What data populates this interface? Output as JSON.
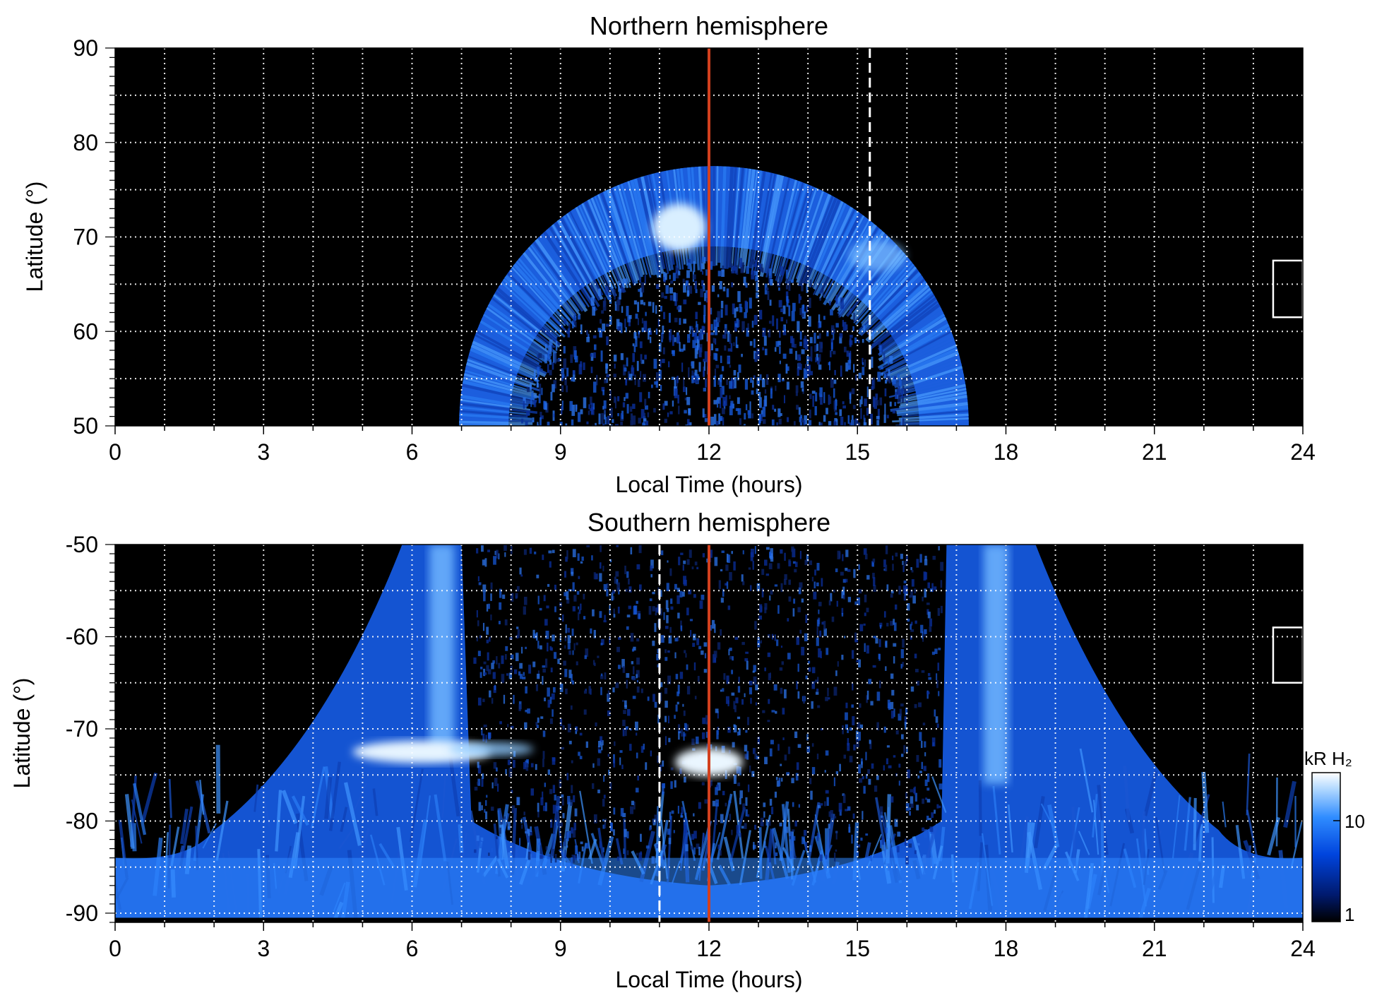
{
  "chart_data": [
    {
      "type": "heatmap",
      "title": "Northern hemisphere",
      "xlabel": "Local Time (hours)",
      "ylabel": "Latitude (°)",
      "xlim": [
        0,
        24
      ],
      "ylim": [
        50,
        90
      ],
      "xticks": [
        0,
        3,
        6,
        9,
        12,
        15,
        18,
        21,
        24
      ],
      "yticks": [
        50,
        60,
        70,
        80,
        90
      ],
      "grid": true,
      "emission_regions": [
        {
          "name": "auroral oval",
          "shape": "arc",
          "lt_range": [
            7.0,
            17.3
          ],
          "outer_lat_noon": 77.5,
          "inner_lat_noon": 69,
          "peak_lt": 11.4,
          "peak_lat": 71
        },
        {
          "name": "polar cap",
          "shape": "patchy",
          "lt_range": [
            8.0,
            16.0
          ],
          "lat_range": [
            50,
            69
          ]
        }
      ],
      "markers": [
        {
          "type": "solid vertical line",
          "x": 12,
          "color": "#d2401e"
        },
        {
          "type": "dashed vertical line",
          "x": 15.25,
          "color": "#ffffff"
        },
        {
          "type": "box",
          "x_range": [
            23.4,
            24
          ],
          "y_range": [
            61.5,
            67.5
          ],
          "color": "#ffffff"
        }
      ]
    },
    {
      "type": "heatmap",
      "title": "Southern hemisphere",
      "xlabel": "Local Time (hours)",
      "ylabel": "Latitude (°)",
      "xlim": [
        0,
        24
      ],
      "ylim": [
        -91,
        -50
      ],
      "xticks": [
        0,
        3,
        6,
        9,
        12,
        15,
        18,
        21,
        24
      ],
      "yticks": [
        -90,
        -80,
        -70,
        -60,
        -50
      ],
      "grid": true,
      "emission_regions": [
        {
          "name": "dawn oval",
          "lt_range": [
            0,
            7.0
          ],
          "lat_range": [
            -91,
            -50
          ]
        },
        {
          "name": "dusk oval",
          "lt_range": [
            16.5,
            24
          ],
          "lat_range": [
            -91,
            -50
          ]
        },
        {
          "name": "dawn arc",
          "lt": 6.6,
          "lat_range": [
            -72,
            -50
          ]
        },
        {
          "name": "dusk arc",
          "lt": 17.8,
          "lat_range": [
            -75,
            -50
          ]
        },
        {
          "name": "bright patch",
          "lt_range": [
            5.0,
            8.5
          ],
          "lat": -72.5
        },
        {
          "name": "bright spot",
          "lt_range": [
            11.0,
            13.0
          ],
          "lat": -73.5
        },
        {
          "name": "polar band",
          "lt_range": [
            0,
            24
          ],
          "lat_range": [
            -90.5,
            -84
          ]
        }
      ],
      "markers": [
        {
          "type": "solid vertical line",
          "x": 12,
          "color": "#d2401e"
        },
        {
          "type": "dashed vertical line",
          "x": 11,
          "color": "#ffffff"
        },
        {
          "type": "box",
          "x_range": [
            23.4,
            24
          ],
          "y_range": [
            -65,
            -59
          ],
          "color": "#ffffff"
        }
      ]
    }
  ],
  "colorbar": {
    "label": "kR H₂",
    "scale": "log",
    "range": [
      1,
      25
    ],
    "ticks": [
      1,
      10
    ],
    "colors": [
      "#000000",
      "#001a6e",
      "#0044dd",
      "#2f8cff",
      "#b8dcff",
      "#ffffff"
    ]
  },
  "labels": {
    "north_title": "Northern hemisphere",
    "south_title": "Southern hemisphere",
    "north_xlabel": "Local Time (hours)",
    "south_xlabel": "Local Time (hours)",
    "north_ylabel": "Latitude (°)",
    "south_ylabel": "Latitude (°)",
    "colorbar_label": "kR H₂",
    "colorbar_tick_10": "10",
    "colorbar_tick_1": "1"
  }
}
